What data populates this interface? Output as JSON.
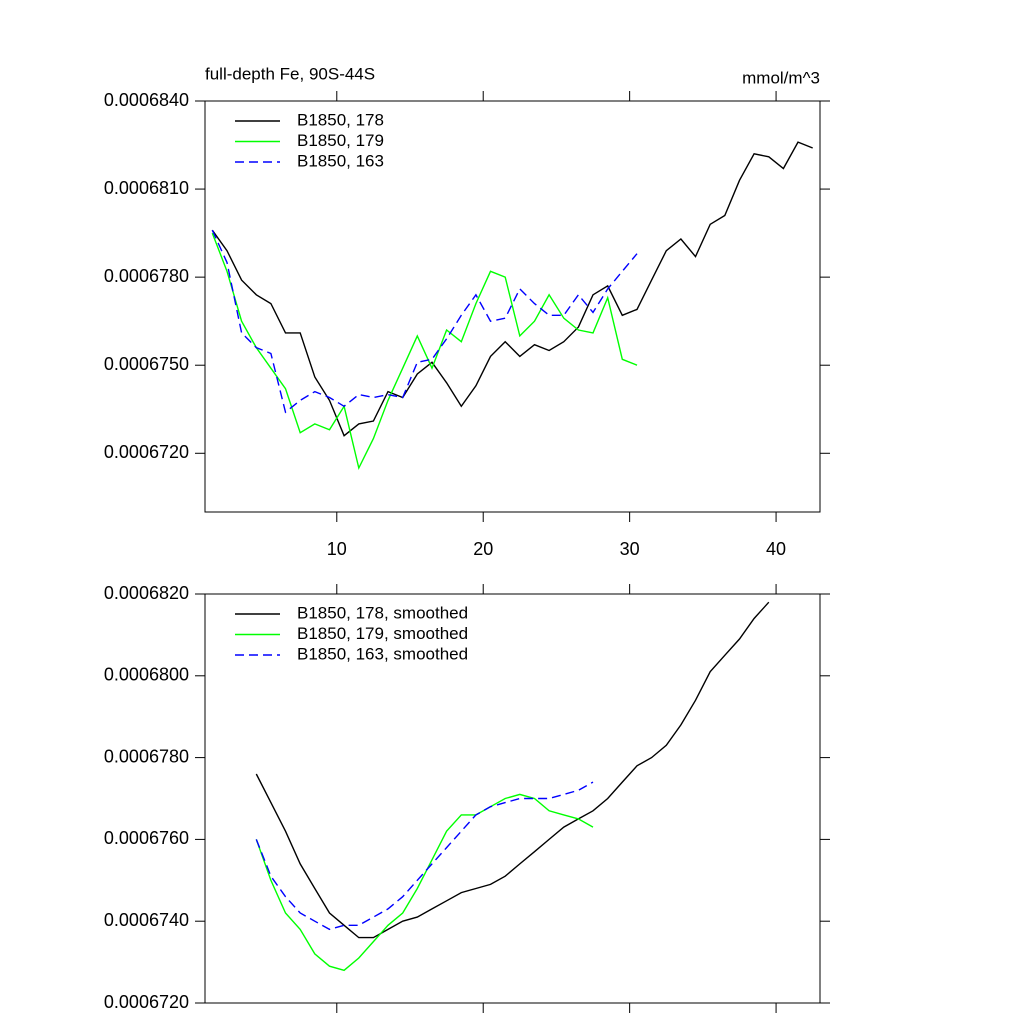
{
  "chart_data": [
    {
      "type": "line",
      "title": "full-depth Fe, 90S-44S",
      "units_label": "mmol/m^3",
      "xlim": [
        1,
        43
      ],
      "xticks": [
        10,
        20,
        30,
        40
      ],
      "xtick_labels": true,
      "ylim": [
        0.00067,
        0.000684
      ],
      "yticks": [
        {
          "value": 0.000672,
          "label": "0.0006720"
        },
        {
          "value": 0.000675,
          "label": "0.0006750"
        },
        {
          "value": 0.000678,
          "label": "0.0006780"
        },
        {
          "value": 0.000681,
          "label": "0.0006810"
        },
        {
          "value": 0.000684,
          "label": "0.0006840"
        }
      ],
      "legend": "upper left",
      "series": [
        {
          "name": "B1850, 178",
          "color": "#000000",
          "line_style": "solid",
          "x": [
            1.5,
            2.5,
            3.5,
            4.5,
            5.5,
            6.5,
            7.5,
            8.5,
            9.5,
            10.5,
            11.5,
            12.5,
            13.5,
            14.5,
            15.5,
            16.5,
            17.5,
            18.5,
            19.5,
            20.5,
            21.5,
            22.5,
            23.5,
            24.5,
            25.5,
            26.5,
            27.5,
            28.5,
            29.5,
            30.5,
            31.5,
            32.5,
            33.5,
            34.5,
            35.5,
            36.5,
            37.5,
            38.5,
            39.5,
            40.5,
            41.5,
            42.5
          ],
          "values": [
            0.0006796,
            0.0006789,
            0.0006779,
            0.0006774,
            0.0006771,
            0.0006761,
            0.0006761,
            0.0006746,
            0.0006738,
            0.0006726,
            0.000673,
            0.0006731,
            0.0006741,
            0.0006739,
            0.0006747,
            0.0006751,
            0.0006744,
            0.0006736,
            0.0006743,
            0.0006753,
            0.0006758,
            0.0006753,
            0.0006757,
            0.0006755,
            0.0006758,
            0.0006763,
            0.0006774,
            0.0006777,
            0.0006767,
            0.0006769,
            0.0006779,
            0.0006789,
            0.0006793,
            0.0006787,
            0.0006798,
            0.0006801,
            0.0006813,
            0.0006822,
            0.0006821,
            0.0006817,
            0.0006826,
            0.0006824
          ]
        },
        {
          "name": "B1850, 179",
          "color": "#00ff00",
          "line_style": "solid",
          "x": [
            1.5,
            2.5,
            3.5,
            4.5,
            5.5,
            6.5,
            7.5,
            8.5,
            9.5,
            10.5,
            11.5,
            12.5,
            13.5,
            14.5,
            15.5,
            16.5,
            17.5,
            18.5,
            19.5,
            20.5,
            21.5,
            22.5,
            23.5,
            24.5,
            25.5,
            26.5,
            27.5,
            28.5,
            29.5,
            30.5
          ],
          "values": [
            0.0006795,
            0.0006782,
            0.0006765,
            0.0006756,
            0.0006749,
            0.0006742,
            0.0006727,
            0.000673,
            0.0006728,
            0.0006736,
            0.0006715,
            0.0006725,
            0.0006738,
            0.0006749,
            0.000676,
            0.0006749,
            0.0006762,
            0.0006758,
            0.0006771,
            0.0006782,
            0.000678,
            0.000676,
            0.0006765,
            0.0006774,
            0.0006766,
            0.0006762,
            0.0006761,
            0.0006773,
            0.0006752,
            0.000675
          ]
        },
        {
          "name": "B1850, 163",
          "color": "#0000ff",
          "line_style": "dashed",
          "x": [
            1.5,
            2.5,
            3.5,
            4.5,
            5.5,
            6.5,
            7.5,
            8.5,
            9.5,
            10.5,
            11.5,
            12.5,
            13.5,
            14.5,
            15.5,
            16.5,
            17.5,
            18.5,
            19.5,
            20.5,
            21.5,
            22.5,
            23.5,
            24.5,
            25.5,
            26.5,
            27.5,
            28.5,
            29.5,
            30.5
          ],
          "values": [
            0.0006796,
            0.0006785,
            0.0006761,
            0.0006756,
            0.0006754,
            0.0006734,
            0.0006738,
            0.0006741,
            0.0006739,
            0.0006736,
            0.000674,
            0.0006739,
            0.000674,
            0.0006739,
            0.0006751,
            0.0006752,
            0.0006759,
            0.0006767,
            0.0006774,
            0.0006765,
            0.0006766,
            0.0006776,
            0.0006771,
            0.0006767,
            0.0006767,
            0.0006774,
            0.0006768,
            0.0006776,
            0.0006782,
            0.0006788
          ]
        }
      ]
    },
    {
      "type": "line",
      "xlim": [
        1,
        43
      ],
      "xticks": [
        10,
        20,
        30,
        40
      ],
      "xtick_labels": false,
      "ylim": [
        0.000672,
        0.000682
      ],
      "yticks": [
        {
          "value": 0.000672,
          "label": "0.0006720"
        },
        {
          "value": 0.000674,
          "label": "0.0006740"
        },
        {
          "value": 0.000676,
          "label": "0.0006760"
        },
        {
          "value": 0.000678,
          "label": "0.0006780"
        },
        {
          "value": 0.00068,
          "label": "0.0006800"
        },
        {
          "value": 0.000682,
          "label": "0.0006820"
        }
      ],
      "legend": "upper left",
      "series": [
        {
          "name": "B1850, 178, smoothed",
          "color": "#000000",
          "line_style": "solid",
          "x": [
            4.5,
            5.5,
            6.5,
            7.5,
            8.5,
            9.5,
            10.5,
            11.5,
            12.5,
            13.5,
            14.5,
            15.5,
            16.5,
            17.5,
            18.5,
            19.5,
            20.5,
            21.5,
            22.5,
            23.5,
            24.5,
            25.5,
            26.5,
            27.5,
            28.5,
            29.5,
            30.5,
            31.5,
            32.5,
            33.5,
            34.5,
            35.5,
            36.5,
            37.5,
            38.5,
            39.5
          ],
          "values": [
            0.0006776,
            0.0006769,
            0.0006762,
            0.0006754,
            0.0006748,
            0.0006742,
            0.0006739,
            0.0006736,
            0.0006736,
            0.0006738,
            0.000674,
            0.0006741,
            0.0006743,
            0.0006745,
            0.0006747,
            0.0006748,
            0.0006749,
            0.0006751,
            0.0006754,
            0.0006757,
            0.000676,
            0.0006763,
            0.0006765,
            0.0006767,
            0.000677,
            0.0006774,
            0.0006778,
            0.000678,
            0.0006783,
            0.0006788,
            0.0006794,
            0.0006801,
            0.0006805,
            0.0006809,
            0.0006814,
            0.0006818
          ]
        },
        {
          "name": "B1850, 179, smoothed",
          "color": "#00ff00",
          "line_style": "solid",
          "x": [
            4.5,
            5.5,
            6.5,
            7.5,
            8.5,
            9.5,
            10.5,
            11.5,
            12.5,
            13.5,
            14.5,
            15.5,
            16.5,
            17.5,
            18.5,
            19.5,
            20.5,
            21.5,
            22.5,
            23.5,
            24.5,
            25.5,
            26.5,
            27.5
          ],
          "values": [
            0.000676,
            0.000675,
            0.0006742,
            0.0006738,
            0.0006732,
            0.0006729,
            0.0006728,
            0.0006731,
            0.0006735,
            0.0006739,
            0.0006742,
            0.0006748,
            0.0006755,
            0.0006762,
            0.0006766,
            0.0006766,
            0.0006768,
            0.000677,
            0.0006771,
            0.000677,
            0.0006767,
            0.0006766,
            0.0006765,
            0.0006763
          ]
        },
        {
          "name": "B1850, 163, smoothed",
          "color": "#0000ff",
          "line_style": "dashed",
          "x": [
            4.5,
            5.5,
            6.5,
            7.5,
            8.5,
            9.5,
            10.5,
            11.5,
            12.5,
            13.5,
            14.5,
            15.5,
            16.5,
            17.5,
            18.5,
            19.5,
            20.5,
            21.5,
            22.5,
            23.5,
            24.5,
            25.5,
            26.5,
            27.5
          ],
          "values": [
            0.000676,
            0.0006751,
            0.0006746,
            0.0006742,
            0.000674,
            0.0006738,
            0.0006739,
            0.0006739,
            0.0006741,
            0.0006743,
            0.0006746,
            0.000675,
            0.0006754,
            0.0006758,
            0.0006762,
            0.0006766,
            0.0006768,
            0.0006769,
            0.000677,
            0.000677,
            0.000677,
            0.0006771,
            0.0006772,
            0.0006774
          ]
        }
      ]
    }
  ]
}
